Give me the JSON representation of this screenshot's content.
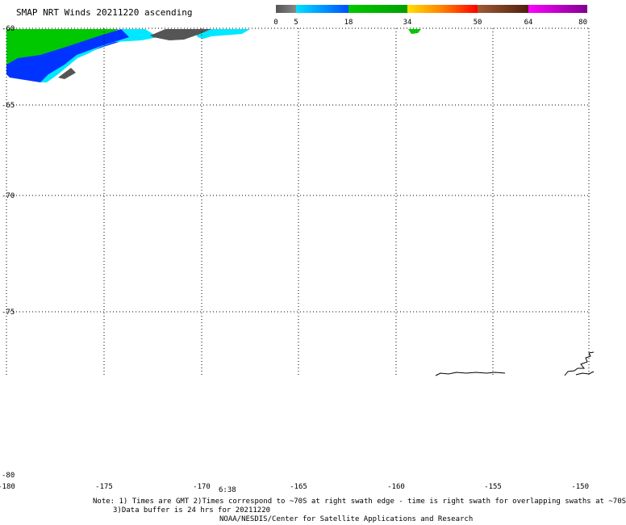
{
  "title": "SMAP NRT Winds 20211220 ascending",
  "colorbar": {
    "tick_labels": [
      "0",
      "5",
      "18",
      "34",
      "50",
      "64",
      "80"
    ],
    "tick_values": [
      0,
      5,
      18,
      34,
      50,
      64,
      80
    ],
    "segments": [
      {
        "from": 0,
        "to": 5,
        "colors": [
          "#555555",
          "#888888"
        ]
      },
      {
        "from": 5,
        "to": 18,
        "colors": [
          "#00e0ff",
          "#0050ff"
        ]
      },
      {
        "from": 18,
        "to": 34,
        "colors": [
          "#00c800",
          "#00a000"
        ]
      },
      {
        "from": 34,
        "to": 50,
        "colors": [
          "#ffe000",
          "#ff8000",
          "#ff0000"
        ]
      },
      {
        "from": 50,
        "to": 64,
        "colors": [
          "#a05a32",
          "#502010"
        ]
      },
      {
        "from": 64,
        "to": 80,
        "colors": [
          "#ff00ff",
          "#800090"
        ]
      }
    ]
  },
  "map": {
    "lon_ticks": [
      "-180",
      "-175",
      "-170",
      "-165",
      "-160",
      "-155",
      "-150"
    ],
    "lat_ticks": [
      "-60",
      "-65",
      "-70",
      "-75",
      "-80"
    ],
    "time_label": "6:38"
  },
  "notes": {
    "line1": "Note: 1) Times are GMT 2)Times correspond to ~70S at right swath edge - time is right swath for overlapping swaths at ~70S",
    "line2": "3)Data buffer is 24 hrs for 20211220",
    "line3": "NOAA/NESDIS/Center for Satellite Applications and Research"
  },
  "colors": {
    "green": "#00c800",
    "blue": "#0033ff",
    "cyan": "#00e8ff",
    "gray": "#555555"
  }
}
